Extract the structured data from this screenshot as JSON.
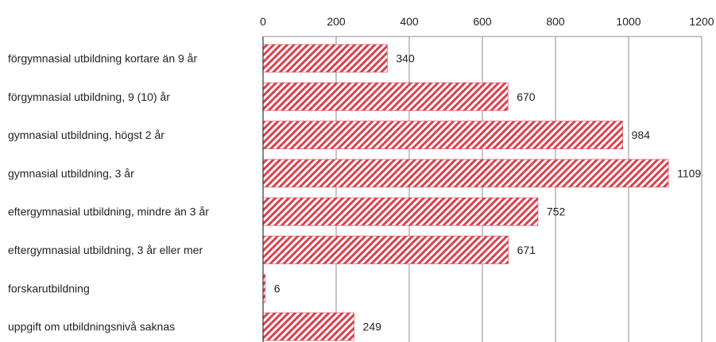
{
  "chart_data": {
    "type": "bar",
    "orientation": "horizontal",
    "categories": [
      "förgymnasial utbildning kortare än 9 år",
      "förgymnasial utbildning, 9 (10) år",
      "gymnasial utbildning, högst 2 år",
      "gymnasial utbildning, 3 år",
      "eftergymnasial utbildning, mindre än 3 år",
      "eftergymnasial utbildning, 3 år eller mer",
      "forskarutbildning",
      "uppgift om utbildningsnivå saknas"
    ],
    "values": [
      340,
      670,
      984,
      1109,
      752,
      671,
      6,
      249
    ],
    "data_labels": [
      "340",
      "670",
      "984",
      "1109",
      "752",
      "671",
      "6",
      "249"
    ],
    "x_ticks": [
      "0",
      "200",
      "400",
      "600",
      "800",
      "1000",
      "1200"
    ],
    "xlim": [
      0,
      1200
    ],
    "title": "",
    "xlabel": "",
    "ylabel": "",
    "grid": true,
    "axis_position": "top",
    "legend": "none",
    "bar_fill": "hatched",
    "colors": {
      "bar_stripe": "#d9414c",
      "grid": "#8c8c8c",
      "axis": "#333333",
      "text": "#222222"
    }
  }
}
